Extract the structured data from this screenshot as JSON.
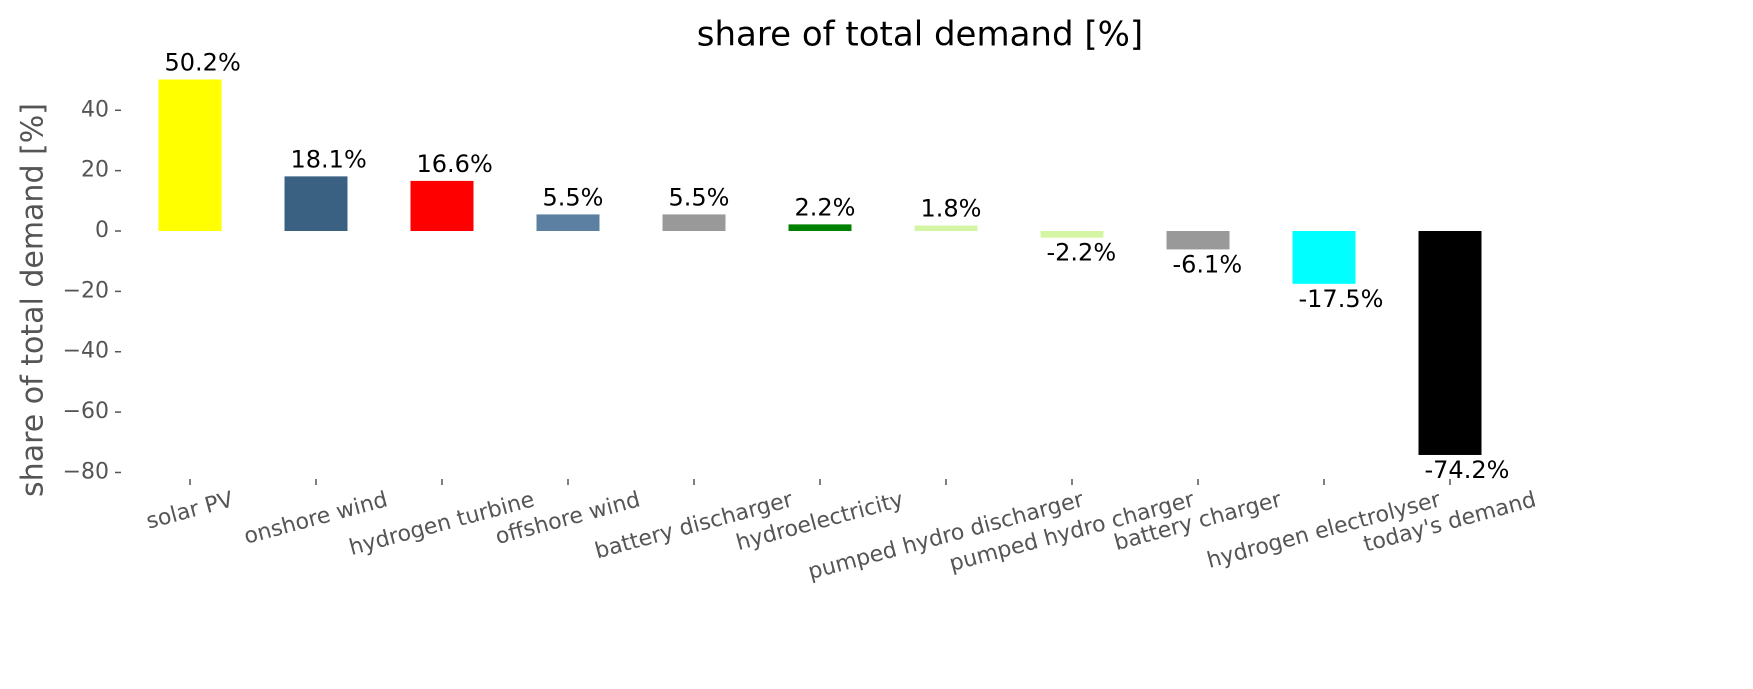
{
  "chart_data": {
    "type": "bar",
    "title": "share of total demand [%]",
    "y_label": "share of total demand [%]",
    "categories": [
      "solar PV",
      "onshore wind",
      "hydrogen turbine",
      "offshore wind",
      "battery discharger",
      "hydroelectricity",
      "pumped hydro discharger",
      "pumped hydro charger",
      "battery charger",
      "hydrogen electrolyser",
      "today's demand"
    ],
    "values": [
      50.2,
      18.1,
      16.6,
      5.5,
      5.5,
      2.2,
      1.8,
      -2.2,
      -6.1,
      -17.5,
      -74.2
    ],
    "value_labels": [
      "50.2%",
      "18.1%",
      "16.6%",
      "5.5%",
      "5.5%",
      "2.2%",
      "1.8%",
      "-2.2%",
      "-6.1%",
      "-17.5%",
      "-74.2%"
    ],
    "colors": [
      "#ffff00",
      "#3b6182",
      "#ff0000",
      "#5b80a2",
      "#999999",
      "#008000",
      "#d4f5a4",
      "#d4f5a4",
      "#999999",
      "#00ffff",
      "#000000"
    ],
    "ylim": [
      -81.5,
      55
    ],
    "yticks": [
      {
        "value": -80,
        "label": "−80"
      },
      {
        "value": -60,
        "label": "−60"
      },
      {
        "value": -40,
        "label": "−40"
      },
      {
        "value": -20,
        "label": "−20"
      },
      0,
      20,
      40
    ]
  }
}
